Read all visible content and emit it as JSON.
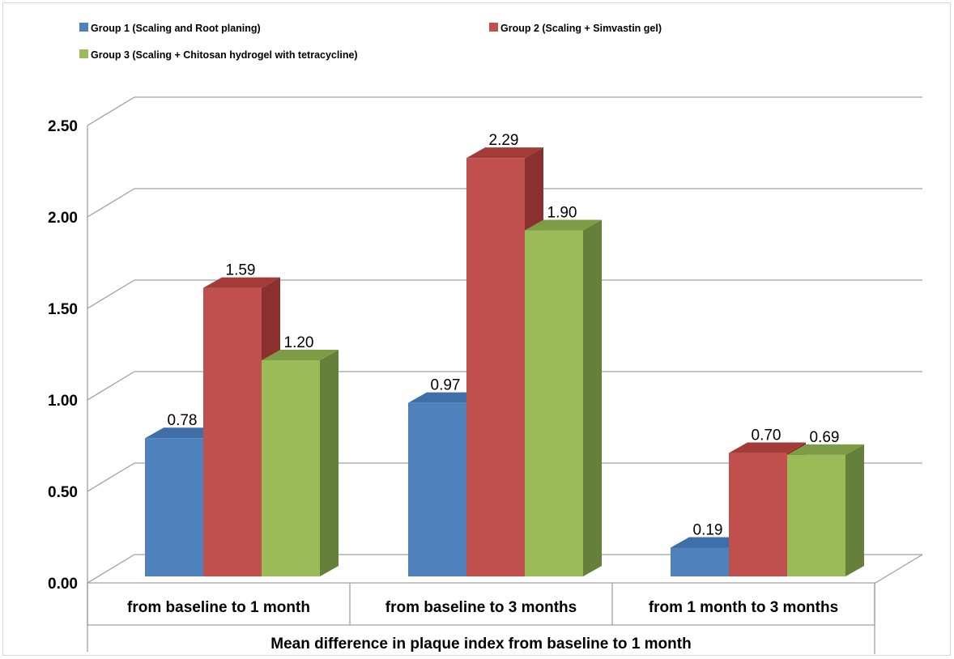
{
  "chart_data": {
    "type": "bar",
    "title": "",
    "xlabel": "Mean difference in plaque index from baseline to 1 month",
    "ylabel": "",
    "ylim": [
      0,
      2.5
    ],
    "yticks": [
      "0.00",
      "0.50",
      "1.00",
      "1.50",
      "2.00",
      "2.50"
    ],
    "grid": true,
    "legend_position": "top",
    "categories": [
      "from baseline to 1 month",
      "from baseline to 3 months",
      "from 1 month to 3 months"
    ],
    "series": [
      {
        "name": "Group 1 (Scaling and Root planing)",
        "values": [
          0.78,
          0.97,
          0.19
        ],
        "labels": [
          "0.78",
          "0.97",
          "0.19"
        ],
        "color": "#4F81BD",
        "side": "#3A6494",
        "top": "#3F6FA8"
      },
      {
        "name": "Group 2 (Scaling + Simvastin gel)",
        "values": [
          1.59,
          2.29,
          0.7
        ],
        "labels": [
          "1.59",
          "2.29",
          "0.70"
        ],
        "color": "#C0504D",
        "side": "#8A302E",
        "top": "#A33C39"
      },
      {
        "name": "Group 3 (Scaling + Chitosan hydrogel with tetracycline)",
        "values": [
          1.2,
          1.9,
          0.69
        ],
        "labels": [
          "1.20",
          "1.90",
          "0.69"
        ],
        "color": "#9BBB59",
        "side": "#65803A",
        "top": "#7E9B45"
      }
    ]
  }
}
